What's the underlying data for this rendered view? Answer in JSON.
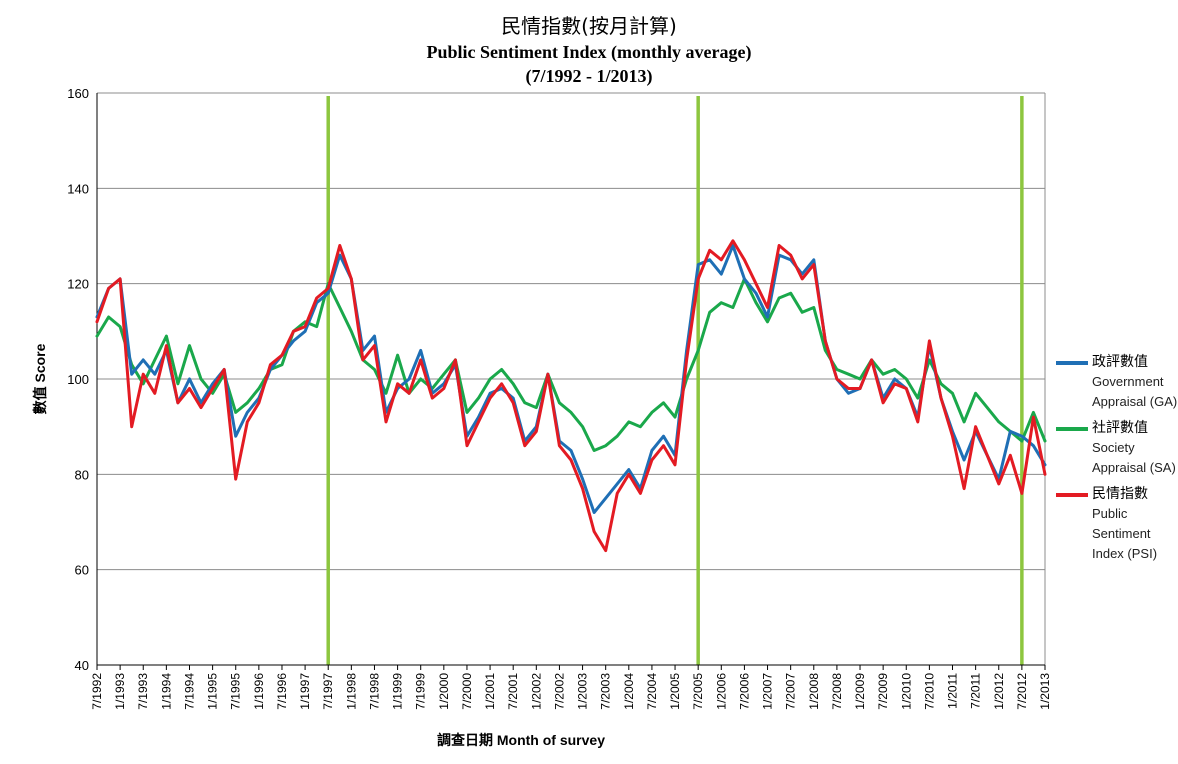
{
  "chart_data": {
    "type": "line",
    "title_zh": "民情指數(按月計算)",
    "title": "Public Sentiment Index (monthly average)",
    "subtitle": "(7/1992 - 1/2013)",
    "ylabel": "數值 Score",
    "xlabel": "調查日期  Month  of survey",
    "ylim": [
      40,
      160
    ],
    "yticks": [
      40,
      60,
      80,
      100,
      120,
      140,
      160
    ],
    "xlim": [
      "7/1992",
      "1/2013"
    ],
    "xticks": [
      "7/1992",
      "1/1993",
      "7/1993",
      "1/1994",
      "7/1994",
      "1/1995",
      "7/1995",
      "1/1996",
      "7/1996",
      "1/1997",
      "7/1997",
      "1/1998",
      "7/1998",
      "1/1999",
      "7/1999",
      "1/2000",
      "7/2000",
      "1/2001",
      "7/2001",
      "1/2002",
      "7/2002",
      "1/2003",
      "7/2003",
      "1/2004",
      "7/2004",
      "1/2005",
      "7/2005",
      "1/2006",
      "7/2006",
      "1/2007",
      "7/2007",
      "1/2008",
      "7/2008",
      "1/2009",
      "7/2009",
      "1/2010",
      "7/2010",
      "1/2011",
      "7/2011",
      "1/2012",
      "7/2012",
      "1/2013"
    ],
    "grid": true,
    "legend_position": "right",
    "reference_lines": [
      "7/1997",
      "7/2005",
      "7/2012"
    ],
    "reference_line_color": "#8dc63f",
    "series": [
      {
        "name_zh": "政評數值",
        "name": "Government Appraisal (GA)",
        "color": "#1f6fb5",
        "points": [
          [
            "7/1992",
            113
          ],
          [
            "10/1992",
            119
          ],
          [
            "1/1993",
            121
          ],
          [
            "4/1993",
            101
          ],
          [
            "7/1993",
            104
          ],
          [
            "10/1993",
            101
          ],
          [
            "1/1994",
            106
          ],
          [
            "4/1994",
            95
          ],
          [
            "7/1994",
            100
          ],
          [
            "10/1994",
            95
          ],
          [
            "1/1995",
            99
          ],
          [
            "4/1995",
            102
          ],
          [
            "7/1995",
            88
          ],
          [
            "10/1995",
            93
          ],
          [
            "1/1996",
            96
          ],
          [
            "4/1996",
            102
          ],
          [
            "7/1996",
            105
          ],
          [
            "10/1996",
            108
          ],
          [
            "1/1997",
            110
          ],
          [
            "4/1997",
            116
          ],
          [
            "7/1997",
            118
          ],
          [
            "10/1997",
            126
          ],
          [
            "1/1998",
            121
          ],
          [
            "4/1998",
            106
          ],
          [
            "7/1998",
            109
          ],
          [
            "10/1998",
            93
          ],
          [
            "1/1999",
            98
          ],
          [
            "4/1999",
            100
          ],
          [
            "7/1999",
            106
          ],
          [
            "10/1999",
            97
          ],
          [
            "1/2000",
            99
          ],
          [
            "4/2000",
            103
          ],
          [
            "7/2000",
            88
          ],
          [
            "10/2000",
            92
          ],
          [
            "1/2001",
            97
          ],
          [
            "4/2001",
            98
          ],
          [
            "7/2001",
            96
          ],
          [
            "10/2001",
            87
          ],
          [
            "1/2002",
            90
          ],
          [
            "4/2002",
            101
          ],
          [
            "7/2002",
            87
          ],
          [
            "10/2002",
            85
          ],
          [
            "1/2003",
            79
          ],
          [
            "4/2003",
            72
          ],
          [
            "7/2003",
            75
          ],
          [
            "10/2003",
            78
          ],
          [
            "1/2004",
            81
          ],
          [
            "4/2004",
            77
          ],
          [
            "7/2004",
            85
          ],
          [
            "10/2004",
            88
          ],
          [
            "1/2005",
            84
          ],
          [
            "4/2005",
            106
          ],
          [
            "7/2005",
            124
          ],
          [
            "10/2005",
            125
          ],
          [
            "1/2006",
            122
          ],
          [
            "4/2006",
            128
          ],
          [
            "7/2006",
            121
          ],
          [
            "10/2006",
            118
          ],
          [
            "1/2007",
            113
          ],
          [
            "4/2007",
            126
          ],
          [
            "7/2007",
            125
          ],
          [
            "10/2007",
            122
          ],
          [
            "1/2008",
            125
          ],
          [
            "4/2008",
            108
          ],
          [
            "7/2008",
            100
          ],
          [
            "10/2008",
            97
          ],
          [
            "1/2009",
            98
          ],
          [
            "4/2009",
            104
          ],
          [
            "7/2009",
            96
          ],
          [
            "10/2009",
            100
          ],
          [
            "1/2010",
            98
          ],
          [
            "4/2010",
            92
          ],
          [
            "7/2010",
            107
          ],
          [
            "10/2010",
            96
          ],
          [
            "1/2011",
            89
          ],
          [
            "4/2011",
            83
          ],
          [
            "7/2011",
            89
          ],
          [
            "10/2011",
            84
          ],
          [
            "1/2012",
            79
          ],
          [
            "4/2012",
            89
          ],
          [
            "7/2012",
            88
          ],
          [
            "10/2012",
            86
          ],
          [
            "1/2013",
            82
          ]
        ]
      },
      {
        "name_zh": "社評數值",
        "name": "Society Appraisal (SA)",
        "color": "#1aa84b",
        "points": [
          [
            "7/1992",
            109
          ],
          [
            "10/1992",
            113
          ],
          [
            "1/1993",
            111
          ],
          [
            "4/1993",
            103
          ],
          [
            "7/1993",
            99
          ],
          [
            "10/1993",
            104
          ],
          [
            "1/1994",
            109
          ],
          [
            "4/1994",
            99
          ],
          [
            "7/1994",
            107
          ],
          [
            "10/1994",
            100
          ],
          [
            "1/1995",
            97
          ],
          [
            "4/1995",
            101
          ],
          [
            "7/1995",
            93
          ],
          [
            "10/1995",
            95
          ],
          [
            "1/1996",
            98
          ],
          [
            "4/1996",
            102
          ],
          [
            "7/1996",
            103
          ],
          [
            "10/1996",
            110
          ],
          [
            "1/1997",
            112
          ],
          [
            "4/1997",
            111
          ],
          [
            "7/1997",
            120
          ],
          [
            "10/1997",
            115
          ],
          [
            "1/1998",
            110
          ],
          [
            "4/1998",
            104
          ],
          [
            "7/1998",
            102
          ],
          [
            "10/1998",
            97
          ],
          [
            "1/1999",
            105
          ],
          [
            "4/1999",
            97
          ],
          [
            "7/1999",
            100
          ],
          [
            "10/1999",
            98
          ],
          [
            "1/2000",
            101
          ],
          [
            "4/2000",
            104
          ],
          [
            "7/2000",
            93
          ],
          [
            "10/2000",
            96
          ],
          [
            "1/2001",
            100
          ],
          [
            "4/2001",
            102
          ],
          [
            "7/2001",
            99
          ],
          [
            "10/2001",
            95
          ],
          [
            "1/2002",
            94
          ],
          [
            "4/2002",
            101
          ],
          [
            "7/2002",
            95
          ],
          [
            "10/2002",
            93
          ],
          [
            "1/2003",
            90
          ],
          [
            "4/2003",
            85
          ],
          [
            "7/2003",
            86
          ],
          [
            "10/2003",
            88
          ],
          [
            "1/2004",
            91
          ],
          [
            "4/2004",
            90
          ],
          [
            "7/2004",
            93
          ],
          [
            "10/2004",
            95
          ],
          [
            "1/2005",
            92
          ],
          [
            "4/2005",
            100
          ],
          [
            "7/2005",
            106
          ],
          [
            "10/2005",
            114
          ],
          [
            "1/2006",
            116
          ],
          [
            "4/2006",
            115
          ],
          [
            "7/2006",
            121
          ],
          [
            "10/2006",
            116
          ],
          [
            "1/2007",
            112
          ],
          [
            "4/2007",
            117
          ],
          [
            "7/2007",
            118
          ],
          [
            "10/2007",
            114
          ],
          [
            "1/2008",
            115
          ],
          [
            "4/2008",
            106
          ],
          [
            "7/2008",
            102
          ],
          [
            "10/2008",
            101
          ],
          [
            "1/2009",
            100
          ],
          [
            "4/2009",
            104
          ],
          [
            "7/2009",
            101
          ],
          [
            "10/2009",
            102
          ],
          [
            "1/2010",
            100
          ],
          [
            "4/2010",
            96
          ],
          [
            "7/2010",
            104
          ],
          [
            "10/2010",
            99
          ],
          [
            "1/2011",
            97
          ],
          [
            "4/2011",
            91
          ],
          [
            "7/2011",
            97
          ],
          [
            "10/2011",
            94
          ],
          [
            "1/2012",
            91
          ],
          [
            "4/2012",
            89
          ],
          [
            "7/2012",
            87
          ],
          [
            "10/2012",
            93
          ],
          [
            "1/2013",
            87
          ]
        ]
      },
      {
        "name_zh": "民情指數",
        "name": "Public Sentiment Index (PSI)",
        "color": "#e31b23",
        "points": [
          [
            "7/1992",
            112
          ],
          [
            "10/1992",
            119
          ],
          [
            "1/1993",
            121
          ],
          [
            "4/1993",
            90
          ],
          [
            "7/1993",
            101
          ],
          [
            "10/1993",
            97
          ],
          [
            "1/1994",
            107
          ],
          [
            "4/1994",
            95
          ],
          [
            "7/1994",
            98
          ],
          [
            "10/1994",
            94
          ],
          [
            "1/1995",
            98
          ],
          [
            "4/1995",
            102
          ],
          [
            "7/1995",
            79
          ],
          [
            "10/1995",
            91
          ],
          [
            "1/1996",
            95
          ],
          [
            "4/1996",
            103
          ],
          [
            "7/1996",
            105
          ],
          [
            "10/1996",
            110
          ],
          [
            "1/1997",
            111
          ],
          [
            "4/1997",
            117
          ],
          [
            "7/1997",
            119
          ],
          [
            "10/1997",
            128
          ],
          [
            "1/1998",
            121
          ],
          [
            "4/1998",
            104
          ],
          [
            "7/1998",
            107
          ],
          [
            "10/1998",
            91
          ],
          [
            "1/1999",
            99
          ],
          [
            "4/1999",
            97
          ],
          [
            "7/1999",
            104
          ],
          [
            "10/1999",
            96
          ],
          [
            "1/2000",
            98
          ],
          [
            "4/2000",
            104
          ],
          [
            "7/2000",
            86
          ],
          [
            "10/2000",
            91
          ],
          [
            "1/2001",
            96
          ],
          [
            "4/2001",
            99
          ],
          [
            "7/2001",
            95
          ],
          [
            "10/2001",
            86
          ],
          [
            "1/2002",
            89
          ],
          [
            "4/2002",
            101
          ],
          [
            "7/2002",
            86
          ],
          [
            "10/2002",
            83
          ],
          [
            "1/2003",
            77
          ],
          [
            "4/2003",
            68
          ],
          [
            "7/2003",
            64
          ],
          [
            "10/2003",
            76
          ],
          [
            "1/2004",
            80
          ],
          [
            "4/2004",
            76
          ],
          [
            "7/2004",
            83
          ],
          [
            "10/2004",
            86
          ],
          [
            "1/2005",
            82
          ],
          [
            "4/2005",
            104
          ],
          [
            "7/2005",
            121
          ],
          [
            "10/2005",
            127
          ],
          [
            "1/2006",
            125
          ],
          [
            "4/2006",
            129
          ],
          [
            "7/2006",
            125
          ],
          [
            "10/2006",
            120
          ],
          [
            "1/2007",
            115
          ],
          [
            "4/2007",
            128
          ],
          [
            "7/2007",
            126
          ],
          [
            "10/2007",
            121
          ],
          [
            "1/2008",
            124
          ],
          [
            "4/2008",
            108
          ],
          [
            "7/2008",
            100
          ],
          [
            "10/2008",
            98
          ],
          [
            "1/2009",
            98
          ],
          [
            "4/2009",
            104
          ],
          [
            "7/2009",
            95
          ],
          [
            "10/2009",
            99
          ],
          [
            "1/2010",
            98
          ],
          [
            "4/2010",
            91
          ],
          [
            "7/2010",
            108
          ],
          [
            "10/2010",
            96
          ],
          [
            "1/2011",
            88
          ],
          [
            "4/2011",
            77
          ],
          [
            "7/2011",
            90
          ],
          [
            "10/2011",
            84
          ],
          [
            "1/2012",
            78
          ],
          [
            "4/2012",
            84
          ],
          [
            "7/2012",
            76
          ],
          [
            "10/2012",
            92
          ],
          [
            "1/2013",
            80
          ]
        ]
      }
    ]
  }
}
